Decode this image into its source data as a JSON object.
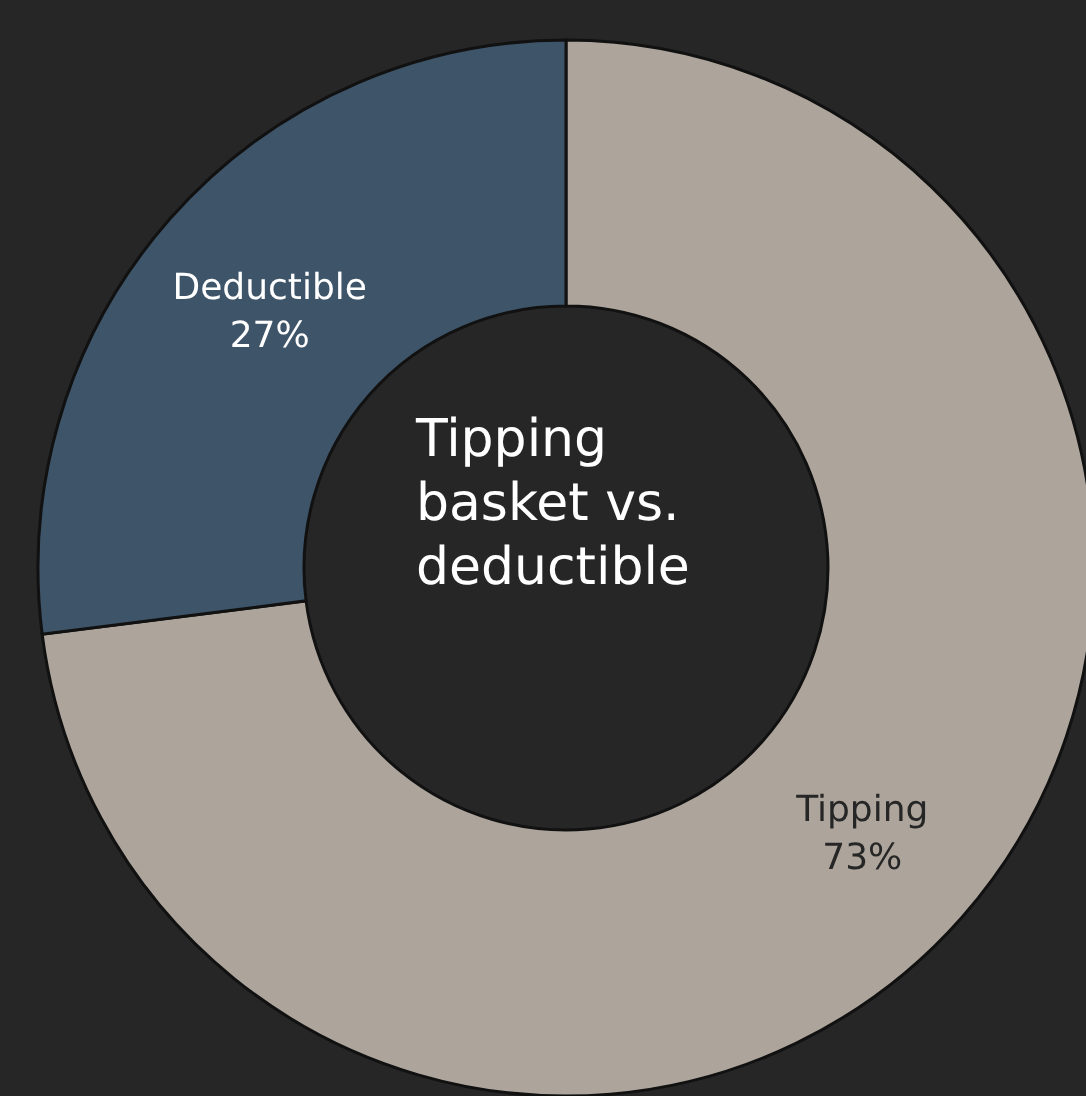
{
  "chart_data": {
    "type": "donut",
    "title": "Tipping basket vs. deductible",
    "categories": [
      "Tipping",
      "Deductible"
    ],
    "values": [
      73,
      27
    ],
    "value_labels": [
      "73%",
      "27%"
    ],
    "colors": [
      "#ada59c",
      "#3e5468"
    ],
    "legend": false
  }
}
